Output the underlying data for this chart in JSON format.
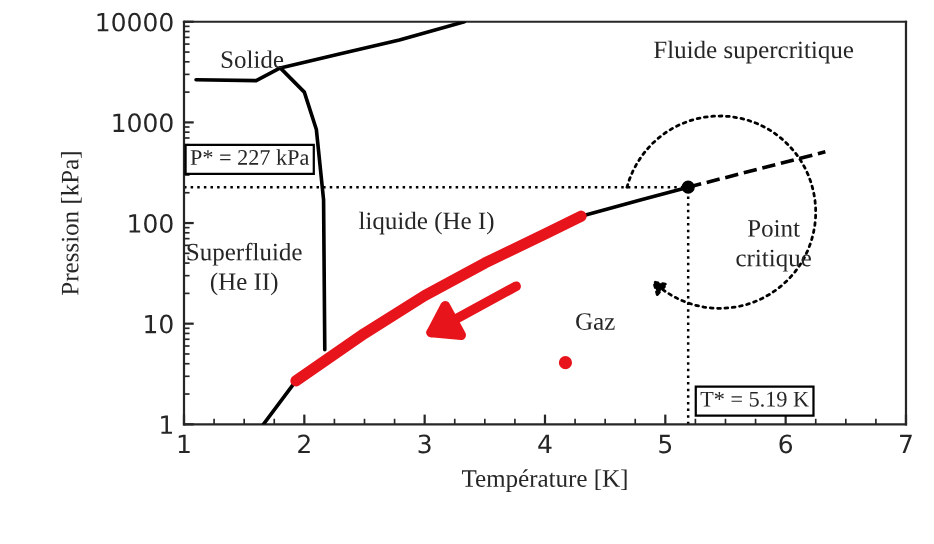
{
  "chart_data": {
    "type": "line",
    "xlabel": "Température [K]",
    "ylabel": "Pression [kPa]",
    "log": "y",
    "xlim": [
      1,
      7
    ],
    "xticks": [
      1,
      2,
      3,
      4,
      5,
      6,
      7
    ],
    "ylim": [
      1,
      10000
    ],
    "yticks": [
      1,
      10,
      100,
      1000,
      10000
    ],
    "grid": false,
    "series": [
      {
        "color": "#000000",
        "line_style": "solid",
        "x": [
          1.1,
          1.6,
          1.8,
          2.3,
          2.79,
          3.33
        ],
        "values": [
          2650,
          2600,
          3480,
          4800,
          6600,
          10000
        ]
      },
      {
        "color": "#000000",
        "line_style": "solid",
        "x": [
          1.8,
          2.0,
          2.1,
          2.16,
          2.17
        ],
        "values": [
          3480,
          2000,
          850,
          170,
          5.5
        ]
      },
      {
        "color": "#000000",
        "line_style": "solid",
        "x": [
          1.66,
          1.93,
          2.5,
          3.0,
          3.5,
          4.0,
          4.3,
          4.8,
          5.19
        ],
        "values": [
          1,
          2.7,
          null,
          null,
          null,
          null,
          117,
          170,
          227
        ]
      },
      {
        "color": "#e8141c",
        "line_style": "solid",
        "x": [
          1.93,
          2.5,
          3.0,
          3.5,
          4.0,
          4.3
        ],
        "values": [
          2.7,
          8,
          19,
          40,
          78,
          117
        ]
      },
      {
        "color": "#000000",
        "line_style": "dashed",
        "x": [
          5.19,
          6.33
        ],
        "values": [
          227,
          510
        ]
      },
      {
        "type": "scatter",
        "color": "#000000",
        "marker": "circle",
        "x": [
          5.19
        ],
        "values": [
          227
        ]
      },
      {
        "type": "scatter",
        "color": "#e8141c",
        "marker": "circle",
        "x": [
          4.17
        ],
        "values": [
          4.1
        ]
      }
    ],
    "ref_lines": [
      {
        "axis": "y",
        "value": 227,
        "label": "P* = 227 kPa",
        "line_style": "dotted",
        "color": "#000000"
      },
      {
        "axis": "x",
        "value": 5.19,
        "label": "T* = 5.19 K",
        "line_style": "dotted",
        "color": "#000000"
      }
    ],
    "annotations": [
      "Solide",
      "Fluide supercritique",
      "liquide (He I)",
      "Superfluide\n(He II)",
      "Gaz",
      "Point\ncritique"
    ]
  }
}
